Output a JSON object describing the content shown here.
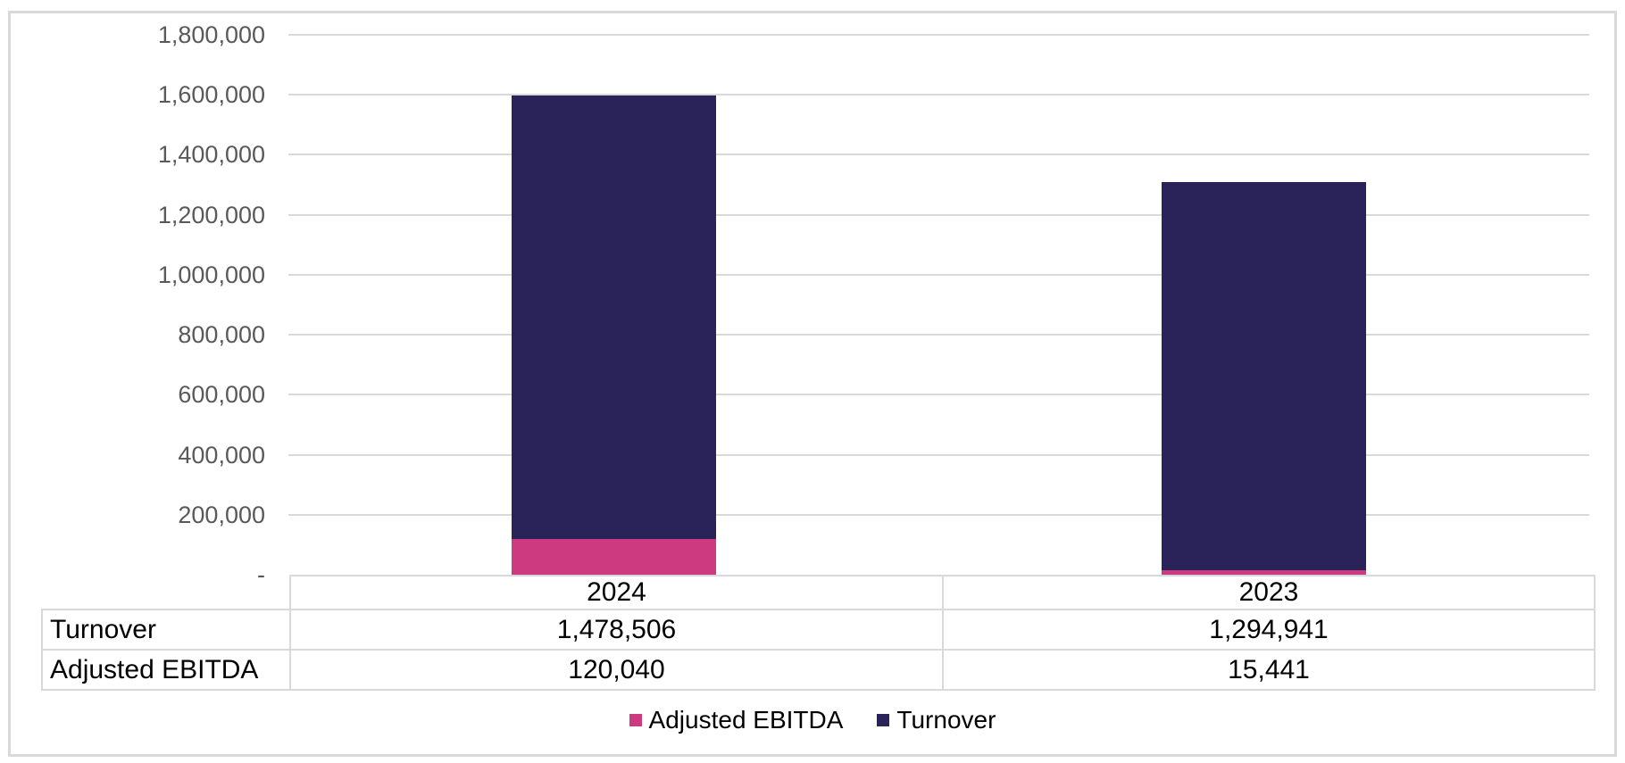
{
  "chart_data": {
    "type": "bar",
    "stacked": true,
    "title": "",
    "xlabel": "",
    "ylabel": "",
    "categories": [
      "2024",
      "2023"
    ],
    "series": [
      {
        "name": "Adjusted EBITDA",
        "values": [
          120040,
          15441
        ],
        "labels": [
          "120,040",
          "15,441"
        ],
        "color": "#ce3a80"
      },
      {
        "name": "Turnover",
        "values": [
          1478506,
          1294941
        ],
        "labels": [
          "1,478,506",
          "1,294,941"
        ],
        "color": "#2a2359"
      }
    ],
    "stack_order": "first series at bottom",
    "ylim": [
      0,
      1800000
    ],
    "y_tick_interval": 200000,
    "y_tick_labels": [
      "-",
      "200,000",
      "400,000",
      "600,000",
      "800,000",
      "1,000,000",
      "1,200,000",
      "1,400,000",
      "1,600,000",
      "1,800,000"
    ],
    "grid": true,
    "legend_position": "bottom",
    "legend": [
      {
        "label": "Adjusted EBITDA",
        "color": "#ce3a80"
      },
      {
        "label": "Turnover",
        "color": "#2a2359"
      }
    ],
    "data_table": {
      "column_headers": [
        "2024",
        "2023"
      ],
      "row_headers": [
        "Turnover",
        "Adjusted EBITDA"
      ],
      "rows": [
        [
          "1,478,506",
          "1,294,941"
        ],
        [
          "120,040",
          "15,441"
        ]
      ]
    }
  },
  "colors": {
    "grid": "#d9d9d9",
    "frame_border": "#d9d9d9",
    "table_border": "#d9d9d9",
    "axis_text": "#595959",
    "table_text": "#000000",
    "legend_text": "#000000",
    "background": "#ffffff"
  }
}
